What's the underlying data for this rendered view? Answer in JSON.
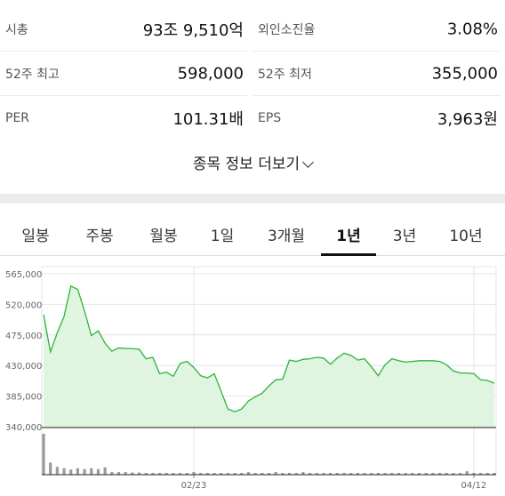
{
  "stats": [
    {
      "label": "시총",
      "value": "93조 9,510억"
    },
    {
      "label": "외인소진율",
      "value": "3.08%"
    },
    {
      "label": "52주 최고",
      "value": "598,000"
    },
    {
      "label": "52주 최저",
      "value": "355,000"
    },
    {
      "label": "PER",
      "value": "101.31배"
    },
    {
      "label": "EPS",
      "value": "3,963원"
    }
  ],
  "more_info": {
    "label": "종목 정보 더보기"
  },
  "tabs": [
    {
      "label": "일봉",
      "active": false
    },
    {
      "label": "주봉",
      "active": false
    },
    {
      "label": "월봉",
      "active": false
    },
    {
      "label": "1일",
      "active": false
    },
    {
      "label": "3개월",
      "active": false
    },
    {
      "label": "1년",
      "active": true
    },
    {
      "label": "3년",
      "active": false
    },
    {
      "label": "10년",
      "active": false
    }
  ],
  "colors": {
    "line": "#2db33b",
    "fill": "#dff5df",
    "volume": "#9a9a9a",
    "grid": "#e4e4e4"
  },
  "chart_data": {
    "type": "area",
    "y_ticks": [
      "565,000",
      "520,000",
      "475,000",
      "430,000",
      "385,000",
      "340,000"
    ],
    "y_tick_values": [
      565000,
      520000,
      475000,
      430000,
      385000,
      340000
    ],
    "ylim": [
      340000,
      565000
    ],
    "x_ticks": [
      {
        "label": "02/23",
        "index": 22
      },
      {
        "label": "04/12",
        "index": 63
      }
    ],
    "series": [
      {
        "values": [
          505000,
          450000,
          478000,
          502000,
          547000,
          542000,
          510000,
          474000,
          481000,
          463000,
          451000,
          456000,
          455000,
          455000,
          454000,
          440000,
          442000,
          418000,
          420000,
          414000,
          433000,
          436000,
          427000,
          415000,
          412000,
          418000,
          392000,
          366000,
          362000,
          366000,
          378000,
          384000,
          389000,
          400000,
          409000,
          410000,
          438000,
          436000,
          439000,
          440000,
          442000,
          441000,
          432000,
          441000,
          448000,
          445000,
          438000,
          440000,
          428000,
          415000,
          431000,
          440000,
          437000,
          435000,
          436000,
          437000,
          437000,
          437000,
          436000,
          431000,
          422000,
          419000,
          419000,
          418000,
          409000,
          408000,
          404000
        ]
      }
    ],
    "volume": [
      95,
      28,
      18,
      15,
      12,
      15,
      13,
      15,
      13,
      17,
      6,
      6,
      6,
      5,
      5,
      4,
      4,
      4,
      4,
      4,
      4,
      4,
      6,
      4,
      4,
      4,
      4,
      4,
      4,
      4,
      6,
      4,
      4,
      4,
      6,
      4,
      4,
      4,
      6,
      4,
      4,
      4,
      4,
      4,
      4,
      4,
      4,
      4,
      4,
      4,
      4,
      4,
      4,
      4,
      4,
      4,
      4,
      4,
      4,
      4,
      4,
      4,
      8,
      4,
      4,
      4,
      4
    ]
  }
}
